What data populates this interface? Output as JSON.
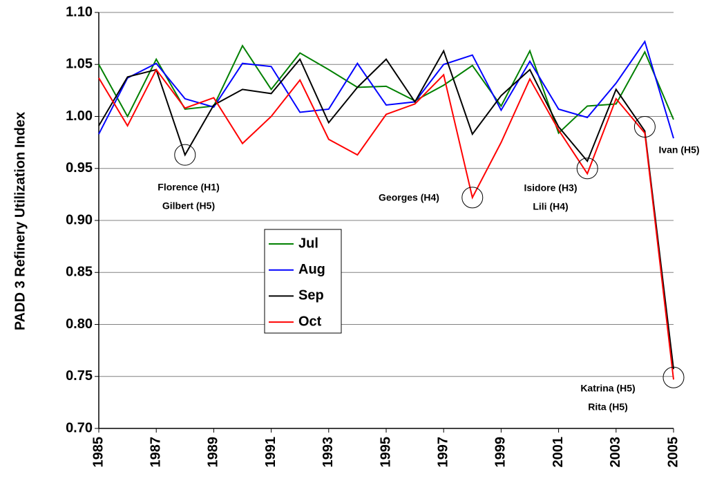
{
  "chart_data": {
    "type": "line",
    "y_label": "PADD 3 Refinery Utilization Index",
    "x": [
      1985,
      1986,
      1987,
      1988,
      1989,
      1990,
      1991,
      1992,
      1993,
      1994,
      1995,
      1996,
      1997,
      1998,
      1999,
      2000,
      2001,
      2002,
      2003,
      2004,
      2005
    ],
    "xlim": [
      1985,
      2005
    ],
    "xticks": [
      1985,
      1987,
      1989,
      1991,
      1993,
      1995,
      1997,
      1999,
      2001,
      2003,
      2005
    ],
    "ylim": [
      0.7,
      1.1
    ],
    "yticks": [
      {
        "value": 0.7,
        "label": "0.70"
      },
      {
        "value": 0.75,
        "label": "0.75"
      },
      {
        "value": 0.8,
        "label": "0.80"
      },
      {
        "value": 0.85,
        "label": "0.85"
      },
      {
        "value": 0.9,
        "label": "0.90"
      },
      {
        "value": 0.95,
        "label": "0.95"
      },
      {
        "value": 1.0,
        "label": "1.00"
      },
      {
        "value": 1.05,
        "label": "1.05"
      },
      {
        "value": 1.1,
        "label": "1.10"
      }
    ],
    "grid": true,
    "series": [
      {
        "name": "Jul",
        "color": "#008000",
        "values": [
          1.05,
          1.0,
          1.055,
          1.007,
          1.01,
          1.068,
          1.026,
          1.061,
          1.045,
          1.028,
          1.029,
          1.015,
          1.03,
          1.049,
          1.01,
          1.063,
          0.984,
          1.01,
          1.012,
          1.062,
          0.997
        ]
      },
      {
        "name": "Aug",
        "color": "#0000ff",
        "values": [
          0.983,
          1.037,
          1.051,
          1.017,
          1.009,
          1.051,
          1.048,
          1.004,
          1.007,
          1.051,
          1.011,
          1.014,
          1.05,
          1.059,
          1.006,
          1.053,
          1.007,
          0.999,
          1.032,
          1.072,
          0.979
        ]
      },
      {
        "name": "Sep",
        "color": "#000000",
        "values": [
          0.991,
          1.038,
          1.045,
          0.963,
          1.011,
          1.026,
          1.022,
          1.055,
          0.994,
          1.028,
          1.055,
          1.014,
          1.063,
          0.983,
          1.02,
          1.045,
          0.99,
          0.957,
          1.026,
          0.986,
          0.757
        ]
      },
      {
        "name": "Oct",
        "color": "#ff0000",
        "values": [
          1.037,
          0.991,
          1.045,
          1.008,
          1.018,
          0.974,
          1.0,
          1.035,
          0.978,
          0.963,
          1.002,
          1.012,
          1.04,
          0.922,
          0.975,
          1.036,
          0.987,
          0.945,
          1.017,
          0.984,
          0.747
        ]
      }
    ],
    "annotations": [
      {
        "lines": [
          "Florence (H1)",
          "Gilbert (H5)"
        ]
      },
      {
        "lines": [
          "Georges (H4)"
        ]
      },
      {
        "lines": [
          "Isidore (H3)",
          "Lili (H4)"
        ]
      },
      {
        "lines": [
          "Ivan (H5)"
        ]
      },
      {
        "lines": [
          "Katrina (H5)",
          "Rita (H5)"
        ]
      }
    ]
  }
}
